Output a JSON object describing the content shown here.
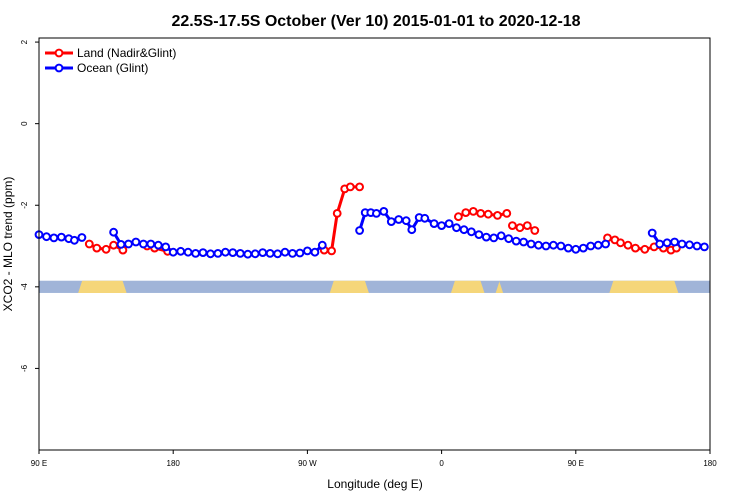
{
  "chart_data": {
    "type": "line",
    "title": "22.5S-17.5S October (Ver 10)   2015-01-01 to 2020-12-18",
    "xlabel": "Longitude (deg E)",
    "ylabel": "XCO2 - MLO trend (ppm)",
    "xlim": [
      90,
      450
    ],
    "ylim": [
      -8,
      2.1
    ],
    "x_ticks": [
      {
        "value": 90,
        "label": "90 E"
      },
      {
        "value": 162,
        "label": "180"
      },
      {
        "value": 234,
        "label": "90 W"
      },
      {
        "value": 306,
        "label": "0"
      },
      {
        "value": 378,
        "label": "90 E"
      },
      {
        "value": 450,
        "label": "180"
      }
    ],
    "y_ticks": [
      {
        "value": 2,
        "label": "2"
      },
      {
        "value": 0,
        "label": "0"
      },
      {
        "value": -2,
        "label": "-2"
      },
      {
        "value": -4,
        "label": "-4"
      },
      {
        "value": -6,
        "label": "-6"
      }
    ],
    "legend_position": "top-left",
    "colors": {
      "land": "#ff0000",
      "ocean": "#0000ff",
      "surface_ocean": "#a0b4d8",
      "surface_land": "#f5d67a"
    },
    "surface_strip": {
      "y_range": [
        -4.15,
        -3.85
      ],
      "land_segments": [
        [
          111,
          137
        ],
        [
          246,
          267
        ],
        [
          311,
          329
        ],
        [
          335,
          339
        ],
        [
          396,
          433
        ]
      ]
    },
    "series": [
      {
        "name": "Land (Nadir&Glint)",
        "color": "#ff0000",
        "segments": [
          {
            "x": [
              117,
              121,
              126,
              130,
              135
            ],
            "y": [
              -2.95,
              -3.05,
              -3.08,
              -2.98,
              -3.1
            ]
          },
          {
            "x": [
              148,
              152,
              159
            ],
            "y": [
              -3.0,
              -3.05,
              -3.13
            ]
          },
          {
            "x": [
              243,
              247,
              250,
              254,
              257,
              262
            ],
            "y": [
              -3.1,
              -3.12,
              -2.2,
              -1.6,
              -1.55,
              -1.55
            ]
          },
          {
            "x": [
              315,
              319,
              323,
              327,
              331,
              336,
              341
            ],
            "y": [
              -2.28,
              -2.18,
              -2.15,
              -2.2,
              -2.22,
              -2.25,
              -2.2
            ]
          },
          {
            "x": [
              344,
              348,
              352,
              356
            ],
            "y": [
              -2.5,
              -2.55,
              -2.5,
              -2.62
            ]
          },
          {
            "x": [
              395,
              399,
              402,
              406,
              410,
              415,
              420,
              425,
              429,
              432
            ],
            "y": [
              -2.8,
              -2.85,
              -2.92,
              -2.98,
              -3.05,
              -3.08,
              -3.02,
              -3.05,
              -3.1,
              -3.05
            ]
          }
        ]
      },
      {
        "name": "Ocean (Glint)",
        "color": "#0000ff",
        "segments": [
          {
            "x": [
              90,
              94,
              98,
              102,
              106,
              109,
              113
            ],
            "y": [
              -2.72,
              -2.77,
              -2.8,
              -2.78,
              -2.82,
              -2.86,
              -2.79
            ]
          },
          {
            "x": [
              130,
              134,
              138,
              142,
              146,
              150,
              154,
              158,
              162,
              166,
              170,
              174,
              178,
              182,
              186,
              190,
              194,
              198,
              202,
              206,
              210,
              214,
              218,
              222,
              226,
              230,
              234,
              238,
              242
            ],
            "y": [
              -2.66,
              -2.96,
              -2.95,
              -2.9,
              -2.95,
              -2.95,
              -2.98,
              -3.02,
              -3.15,
              -3.13,
              -3.15,
              -3.18,
              -3.16,
              -3.19,
              -3.18,
              -3.15,
              -3.16,
              -3.18,
              -3.2,
              -3.19,
              -3.16,
              -3.18,
              -3.19,
              -3.15,
              -3.18,
              -3.17,
              -3.12,
              -3.15,
              -2.98
            ]
          },
          {
            "x": [
              262,
              265,
              268,
              271,
              275,
              279,
              283,
              287,
              290,
              294,
              297,
              302,
              306,
              310,
              314,
              318,
              322,
              326,
              330,
              334,
              338,
              342,
              346,
              350,
              354,
              358,
              362,
              366,
              370,
              374,
              378,
              382,
              386,
              390,
              394
            ],
            "y": [
              -2.62,
              -2.18,
              -2.18,
              -2.2,
              -2.15,
              -2.4,
              -2.35,
              -2.38,
              -2.6,
              -2.3,
              -2.32,
              -2.45,
              -2.5,
              -2.45,
              -2.55,
              -2.6,
              -2.65,
              -2.72,
              -2.78,
              -2.8,
              -2.75,
              -2.82,
              -2.88,
              -2.9,
              -2.95,
              -2.98,
              -3.0,
              -2.98,
              -3.0,
              -3.05,
              -3.08,
              -3.05,
              -3.0,
              -2.98,
              -2.95
            ]
          },
          {
            "x": [
              419,
              423,
              427,
              431,
              435,
              439,
              443,
              447
            ],
            "y": [
              -2.68,
              -2.95,
              -2.92,
              -2.9,
              -2.95,
              -2.97,
              -3.0,
              -3.02
            ]
          }
        ]
      }
    ]
  }
}
